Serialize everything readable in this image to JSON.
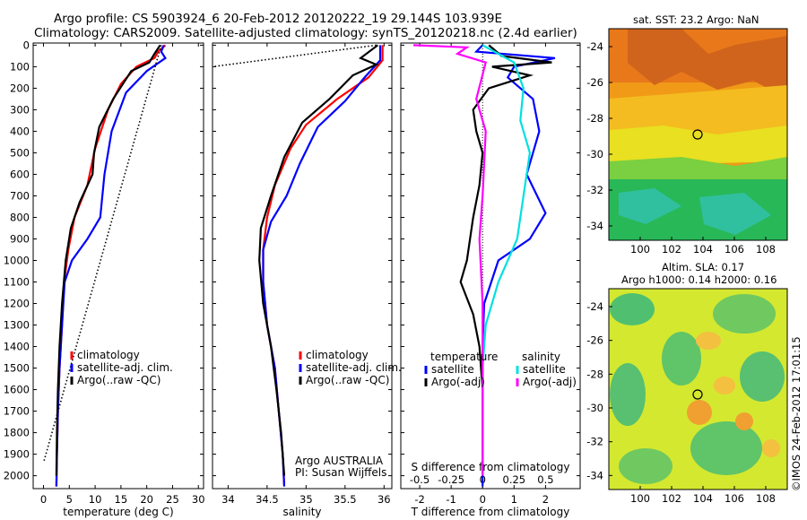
{
  "title_line1": "Argo profile: CS 5903924_6 20-Feb-2012 20120222_19 29.144S 103.939E",
  "title_line2": "Climatology: CARS2009. Satellite-adjusted climatology: synTS_20120218.nc (2.4d earlier)",
  "side_label": "©IMOS 24-Feb-2012 17:01:15",
  "colors": {
    "climatology": "#ff0000",
    "satellite": "#0000ff",
    "argo": "#000000",
    "sat_sal": "#00e0e0",
    "argo_sal": "#ff00ff",
    "dotted": "#000000"
  },
  "chart_data": [
    {
      "type": "line",
      "panel": "temperature",
      "xlabel": "temperature (deg C)",
      "ylabel": "",
      "xlim": [
        -2,
        31
      ],
      "ylim": [
        2060,
        -10
      ],
      "xticks": [
        0,
        5,
        10,
        15,
        20,
        25,
        30
      ],
      "yticks": [
        0,
        100,
        200,
        300,
        400,
        500,
        600,
        700,
        800,
        900,
        1000,
        1100,
        1200,
        1300,
        1400,
        1500,
        1600,
        1700,
        1800,
        1900,
        2000
      ],
      "legend": [
        "climatology",
        "satellite-adj. clim.",
        "Argo(..raw -QC)"
      ],
      "series": [
        {
          "name": "climatology",
          "color": "climatology",
          "points": [
            [
              23.6,
              0
            ],
            [
              22.2,
              30
            ],
            [
              21.5,
              60
            ],
            [
              18,
              100
            ],
            [
              15,
              180
            ],
            [
              12.5,
              300
            ],
            [
              10,
              480
            ],
            [
              8.5,
              650
            ],
            [
              6,
              800
            ],
            [
              4.8,
              950
            ],
            [
              4,
              1100
            ],
            [
              3.6,
              1300
            ],
            [
              3.1,
              1500
            ],
            [
              2.8,
              1700
            ],
            [
              2.6,
              1900
            ],
            [
              2.5,
              2050
            ]
          ]
        },
        {
          "name": "satellite-adj. clim.",
          "color": "satellite",
          "points": [
            [
              23.3,
              0
            ],
            [
              22.8,
              30
            ],
            [
              23.6,
              60
            ],
            [
              20,
              120
            ],
            [
              16,
              220
            ],
            [
              13.2,
              400
            ],
            [
              11.8,
              600
            ],
            [
              11,
              800
            ],
            [
              8.5,
              900
            ],
            [
              5.5,
              1000
            ],
            [
              4.1,
              1100
            ],
            [
              3.6,
              1300
            ],
            [
              3.1,
              1500
            ],
            [
              2.8,
              1700
            ],
            [
              2.6,
              1900
            ],
            [
              2.5,
              2050
            ]
          ]
        },
        {
          "name": "Argo(..raw -QC)",
          "color": "argo",
          "points": [
            [
              22.6,
              0
            ],
            [
              21.5,
              40
            ],
            [
              20.5,
              80
            ],
            [
              17,
              120
            ],
            [
              13.5,
              250
            ],
            [
              10.8,
              380
            ],
            [
              9.8,
              500
            ],
            [
              9.5,
              600
            ],
            [
              7,
              730
            ],
            [
              5.3,
              850
            ],
            [
              4.3,
              1000
            ],
            [
              3.6,
              1200
            ],
            [
              3.1,
              1400
            ],
            [
              2.8,
              1600
            ],
            [
              2.6,
              1800
            ],
            [
              2.5,
              2000
            ]
          ]
        },
        {
          "name": "",
          "color": "dotted",
          "dotted": true,
          "points": [
            [
              22.8,
              0
            ],
            [
              0,
              1940
            ]
          ]
        }
      ]
    },
    {
      "type": "line",
      "panel": "salinity",
      "xlabel": "salinity",
      "ylabel": "",
      "xlim": [
        33.8,
        36.1
      ],
      "ylim": [
        2060,
        -10
      ],
      "xticks": [
        34,
        34.5,
        35,
        35.5,
        36
      ],
      "legend": [
        "climatology",
        "satellite-adj. clim.",
        "Argo(..raw -QC)"
      ],
      "annotation": [
        "Argo AUSTRALIA",
        "PI: Susan Wijffels"
      ],
      "series": [
        {
          "name": "climatology",
          "color": "climatology",
          "points": [
            [
              35.98,
              0
            ],
            [
              35.98,
              70
            ],
            [
              35.8,
              150
            ],
            [
              35.4,
              250
            ],
            [
              35.0,
              370
            ],
            [
              34.8,
              480
            ],
            [
              34.6,
              650
            ],
            [
              34.5,
              800
            ],
            [
              34.45,
              950
            ],
            [
              34.45,
              1100
            ],
            [
              34.5,
              1300
            ],
            [
              34.6,
              1500
            ],
            [
              34.65,
              1700
            ],
            [
              34.7,
              1900
            ],
            [
              34.72,
              2050
            ]
          ]
        },
        {
          "name": "satellite-adj. clim.",
          "color": "satellite",
          "points": [
            [
              35.95,
              0
            ],
            [
              35.95,
              70
            ],
            [
              35.75,
              150
            ],
            [
              35.5,
              260
            ],
            [
              35.15,
              380
            ],
            [
              34.92,
              550
            ],
            [
              34.75,
              700
            ],
            [
              34.55,
              820
            ],
            [
              34.45,
              950
            ],
            [
              34.45,
              1100
            ],
            [
              34.5,
              1300
            ],
            [
              34.6,
              1500
            ],
            [
              34.65,
              1700
            ],
            [
              34.7,
              1900
            ],
            [
              34.72,
              2050
            ]
          ]
        },
        {
          "name": "Argo(..raw -QC)",
          "color": "argo",
          "points": [
            [
              35.92,
              0
            ],
            [
              35.7,
              60
            ],
            [
              35.9,
              90
            ],
            [
              35.6,
              140
            ],
            [
              35.3,
              250
            ],
            [
              34.95,
              360
            ],
            [
              34.72,
              520
            ],
            [
              34.55,
              700
            ],
            [
              34.42,
              850
            ],
            [
              34.4,
              1000
            ],
            [
              34.45,
              1200
            ],
            [
              34.55,
              1400
            ],
            [
              34.62,
              1600
            ],
            [
              34.68,
              1800
            ],
            [
              34.72,
              2000
            ]
          ]
        },
        {
          "name": "",
          "color": "dotted",
          "dotted": true,
          "points": [
            [
              35.9,
              0
            ],
            [
              33.8,
              100
            ]
          ]
        }
      ]
    },
    {
      "type": "line",
      "panel": "difference",
      "xlabel": "T difference from climatology",
      "xlabel_top": "S difference from climatology",
      "ylim": [
        2060,
        -10
      ],
      "xlim": [
        -2.6,
        3.1
      ],
      "xticks": [
        -2,
        -1,
        0,
        1,
        2
      ],
      "xticks_top": [
        "-0.5",
        "-0.25",
        "0",
        "0.25",
        "0.5"
      ],
      "legend_temperature": {
        "heading": "temperature",
        "items": [
          "satellite",
          "Argo(-adj)"
        ]
      },
      "legend_salinity": {
        "heading": "salinity",
        "items": [
          "satellite",
          "Argo(-adj)"
        ]
      },
      "series": [
        {
          "name": "satellite",
          "group": "temperature",
          "color": "satellite",
          "points": [
            [
              0,
              0
            ],
            [
              -0.2,
              30
            ],
            [
              2.3,
              60
            ],
            [
              1.0,
              100
            ],
            [
              0.8,
              150
            ],
            [
              1.6,
              250
            ],
            [
              1.8,
              400
            ],
            [
              1.4,
              600
            ],
            [
              2.0,
              780
            ],
            [
              1.5,
              900
            ],
            [
              0.5,
              1000
            ],
            [
              0.05,
              1200
            ],
            [
              0,
              1400
            ],
            [
              0,
              2050
            ]
          ]
        },
        {
          "name": "Argo(-adj)",
          "group": "temperature",
          "color": "argo",
          "points": [
            [
              0.2,
              0
            ],
            [
              0.6,
              50
            ],
            [
              2.2,
              80
            ],
            [
              0.3,
              100
            ],
            [
              1.5,
              140
            ],
            [
              0.2,
              200
            ],
            [
              -0.3,
              300
            ],
            [
              -0.2,
              400
            ],
            [
              0,
              500
            ],
            [
              -0.1,
              650
            ],
            [
              -0.3,
              800
            ],
            [
              -0.5,
              1000
            ],
            [
              -0.7,
              1100
            ],
            [
              -0.3,
              1250
            ],
            [
              -0.1,
              1400
            ],
            [
              0,
              1600
            ],
            [
              0,
              2000
            ]
          ]
        },
        {
          "name": "satellite",
          "group": "salinity",
          "color": "sat_sal",
          "points": [
            [
              0,
              0
            ],
            [
              1.0,
              80
            ],
            [
              1.3,
              200
            ],
            [
              1.2,
              350
            ],
            [
              1.5,
              500
            ],
            [
              1.3,
              700
            ],
            [
              1.1,
              900
            ],
            [
              0.5,
              1100
            ],
            [
              0.1,
              1300
            ],
            [
              0,
              1500
            ],
            [
              0,
              2000
            ]
          ]
        },
        {
          "name": "Argo(-adj)",
          "group": "salinity",
          "color": "argo_sal",
          "points": [
            [
              -2.2,
              0
            ],
            [
              -0.5,
              10
            ],
            [
              -0.8,
              40
            ],
            [
              0.1,
              80
            ],
            [
              -0.2,
              250
            ],
            [
              0.1,
              400
            ],
            [
              0,
              700
            ],
            [
              -0.1,
              900
            ],
            [
              0,
              1200
            ],
            [
              0,
              2000
            ]
          ]
        }
      ]
    }
  ],
  "maps": [
    {
      "title": "sat. SST: 23.2  Argo: NaN",
      "subtitle": "",
      "xticks": [
        "100",
        "102",
        "104",
        "106",
        "108"
      ],
      "yticks": [
        "-24",
        "-26",
        "-28",
        "-30",
        "-32",
        "-34"
      ]
    },
    {
      "title": "Altim. SLA: 0.17",
      "subtitle": "Argo h1000: 0.14  h2000: 0.16",
      "xticks": [
        "100",
        "102",
        "104",
        "106",
        "108"
      ],
      "yticks": [
        "-24",
        "-26",
        "-28",
        "-30",
        "-32",
        "-34"
      ]
    }
  ]
}
